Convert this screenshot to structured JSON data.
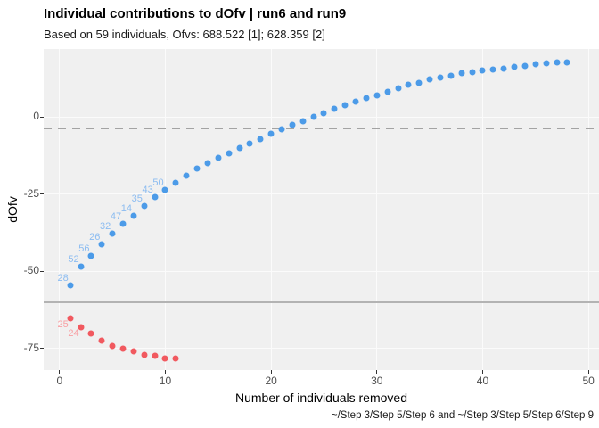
{
  "colors": {
    "panel_background": "#f0f0f0",
    "gridline": "#fbfbfb",
    "blue_point": "#4c9be8",
    "blue_label": "#8cbcf1",
    "red_point": "#f1595f",
    "red_label": "#f8a0a4",
    "dashed_refline": "#a3a3a3",
    "solid_refline": "#b3b3b3",
    "tick_text": "#4d4d4d",
    "title_text": "#000000"
  },
  "chart_data": {
    "type": "scatter",
    "title": "Individual contributions to dOfv | run6 and run9",
    "subtitle": "Based on 59 individuals, Ofvs: 688.522 [1]; 628.359 [2]",
    "caption": "~/Step 3/Step 5/Step 6 and ~/Step 3/Step 5/Step 6/Step 9",
    "xlabel": "Number of individuals removed",
    "ylabel": "dOfv",
    "xlim": [
      -1.5,
      51
    ],
    "ylim": [
      -82,
      22
    ],
    "x_ticks": [
      0,
      10,
      20,
      30,
      40,
      50
    ],
    "y_ticks": [
      0,
      -25,
      -50,
      -75
    ],
    "grid": "major-only",
    "legend": "none",
    "reference_lines": [
      {
        "y": -3.84,
        "style": "dashed",
        "color": "#a3a3a3"
      },
      {
        "y": -60.163,
        "style": "solid",
        "color": "#b3b3b3"
      }
    ],
    "series": [
      {
        "name": "blue",
        "color": "#4c9be8",
        "label_color": "#8cbcf1",
        "label_offset": [
          -8,
          -8
        ],
        "points": [
          {
            "x": 1,
            "y": -54.6,
            "label": "28"
          },
          {
            "x": 2,
            "y": -48.5,
            "label": "52"
          },
          {
            "x": 3,
            "y": -44.9,
            "label": "56"
          },
          {
            "x": 4,
            "y": -41.2,
            "label": "26"
          },
          {
            "x": 5,
            "y": -37.9,
            "label": "32"
          },
          {
            "x": 6,
            "y": -34.7,
            "label": "47"
          },
          {
            "x": 7,
            "y": -32.0,
            "label": "14"
          },
          {
            "x": 8,
            "y": -28.8,
            "label": "35"
          },
          {
            "x": 9,
            "y": -26.0,
            "label": "43"
          },
          {
            "x": 10,
            "y": -23.7,
            "label": "50"
          },
          {
            "x": 11,
            "y": -21.2
          },
          {
            "x": 12,
            "y": -18.9
          },
          {
            "x": 13,
            "y": -16.8
          },
          {
            "x": 14,
            "y": -15.1
          },
          {
            "x": 15,
            "y": -13.3
          },
          {
            "x": 16,
            "y": -11.9
          },
          {
            "x": 17,
            "y": -10.1
          },
          {
            "x": 18,
            "y": -8.5
          },
          {
            "x": 19,
            "y": -7.1
          },
          {
            "x": 20,
            "y": -5.3
          },
          {
            "x": 21,
            "y": -4.0
          },
          {
            "x": 22,
            "y": -2.5
          },
          {
            "x": 23,
            "y": -1.5
          },
          {
            "x": 24,
            "y": 0.1
          },
          {
            "x": 25,
            "y": 1.2
          },
          {
            "x": 26,
            "y": 2.7
          },
          {
            "x": 27,
            "y": 3.7
          },
          {
            "x": 28,
            "y": 5.0
          },
          {
            "x": 29,
            "y": 6.0
          },
          {
            "x": 30,
            "y": 7.1
          },
          {
            "x": 31,
            "y": 8.2
          },
          {
            "x": 32,
            "y": 9.4
          },
          {
            "x": 33,
            "y": 10.4
          },
          {
            "x": 34,
            "y": 11.1
          },
          {
            "x": 35,
            "y": 12.1
          },
          {
            "x": 36,
            "y": 12.7
          },
          {
            "x": 37,
            "y": 13.3
          },
          {
            "x": 38,
            "y": 14.1
          },
          {
            "x": 39,
            "y": 14.6
          },
          {
            "x": 40,
            "y": 15.1
          },
          {
            "x": 41,
            "y": 15.5
          },
          {
            "x": 42,
            "y": 15.7
          },
          {
            "x": 43,
            "y": 16.1
          },
          {
            "x": 44,
            "y": 16.4
          },
          {
            "x": 45,
            "y": 17.0
          },
          {
            "x": 46,
            "y": 17.4
          },
          {
            "x": 47,
            "y": 17.7
          },
          {
            "x": 48,
            "y": 17.6
          }
        ]
      },
      {
        "name": "red",
        "color": "#f1595f",
        "label_color": "#f8a0a4",
        "label_offset": [
          -8,
          7
        ],
        "points": [
          {
            "x": 1,
            "y": -65.3,
            "label": "25"
          },
          {
            "x": 2,
            "y": -68.0,
            "label": "24"
          },
          {
            "x": 3,
            "y": -70.2
          },
          {
            "x": 4,
            "y": -72.4
          },
          {
            "x": 5,
            "y": -74.2
          },
          {
            "x": 6,
            "y": -75.0
          },
          {
            "x": 7,
            "y": -76.0
          },
          {
            "x": 8,
            "y": -77.0
          },
          {
            "x": 9,
            "y": -77.4
          },
          {
            "x": 10,
            "y": -78.2
          },
          {
            "x": 11,
            "y": -78.2
          }
        ]
      }
    ]
  }
}
